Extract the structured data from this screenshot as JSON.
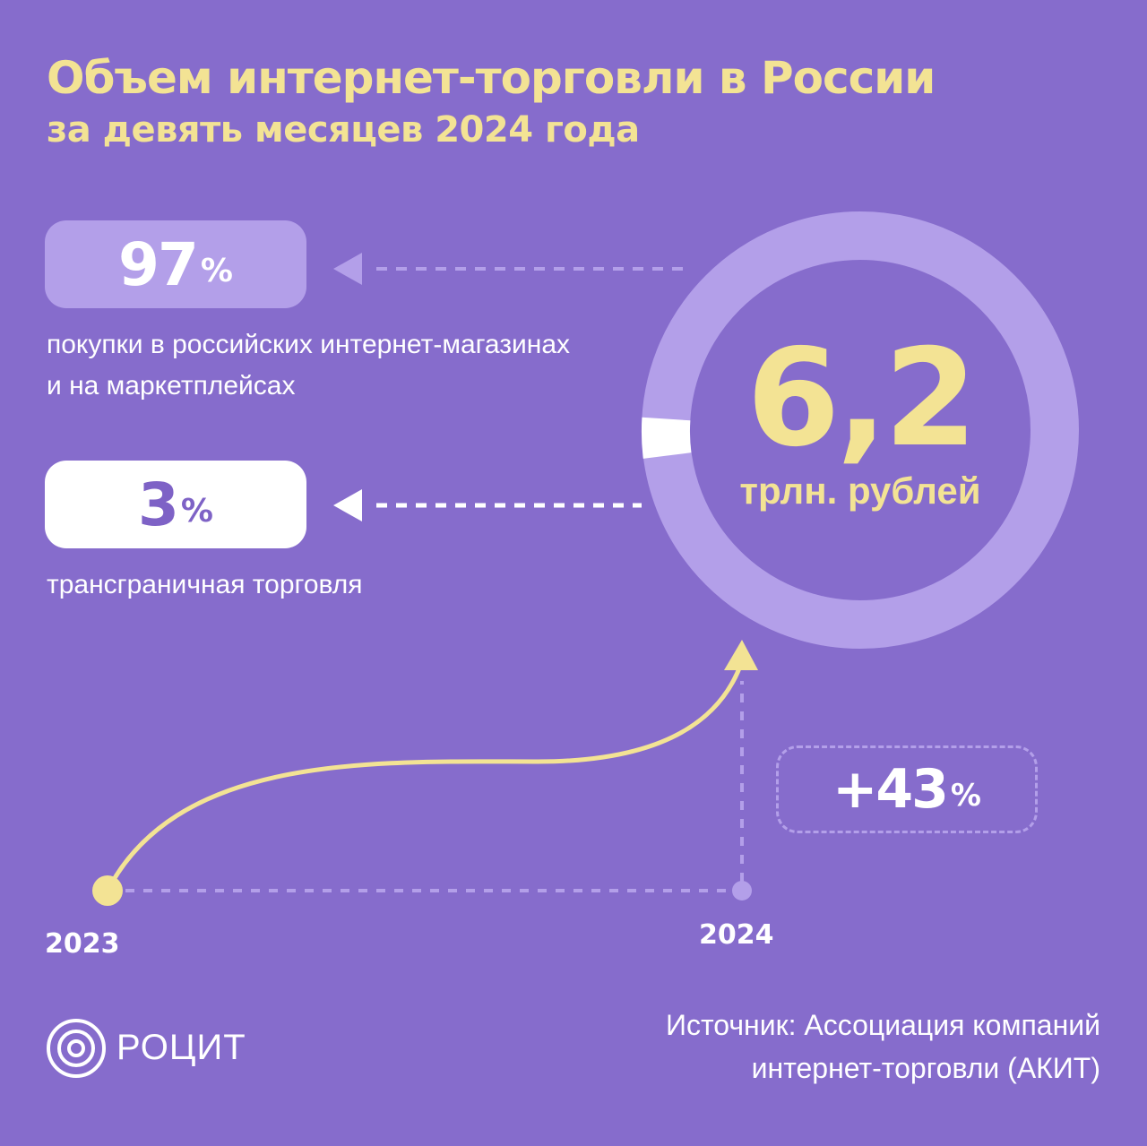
{
  "header": {
    "title": "Объем интернет-торговли в России",
    "subtitle": "за девять месяцев 2024 года"
  },
  "shares": [
    {
      "value": "97",
      "unit": "%",
      "caption": "покупки в российских интернет-магазинах и на маркетплейсах"
    },
    {
      "value": "3",
      "unit": "%",
      "caption": "трансграничная торговля"
    }
  ],
  "total": {
    "value": "6,2",
    "unit": "трлн. рублей"
  },
  "growth": {
    "value": "+43",
    "unit": "%"
  },
  "timeline": {
    "start_year": "2023",
    "end_year": "2024"
  },
  "footer": {
    "brand": "РОЦИТ",
    "source_line1": "Источник: Ассоциация компаний",
    "source_line2": "интернет-торговли (АКИТ)"
  },
  "chart_data": {
    "type": "pie",
    "categories": [
      "покупки в российских интернет-магазинах и на маркетплейсах",
      "трансграничная торговля"
    ],
    "values": [
      97,
      3
    ]
  },
  "colors": {
    "background": "#866ccc",
    "accent_yellow": "#f3e394",
    "ring_light": "#b39fe9",
    "white": "#ffffff"
  }
}
